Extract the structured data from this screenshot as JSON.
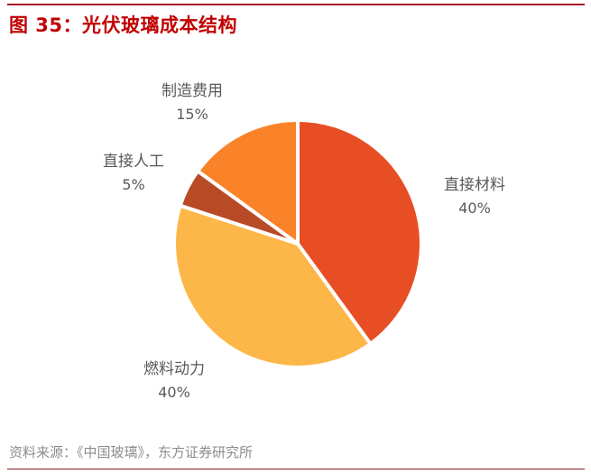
{
  "header": {
    "title": "图 35：光伏玻璃成本结构"
  },
  "footer": {
    "source": "资料来源：《中国玻璃》，东方证券研究所"
  },
  "chart_data": {
    "type": "pie",
    "title": "光伏玻璃成本结构",
    "categories": [
      "直接材料",
      "燃料动力",
      "直接人工",
      "制造费用"
    ],
    "values": [
      40,
      40,
      5,
      15
    ],
    "labels": [
      "40%",
      "40%",
      "5%",
      "15%"
    ],
    "colors": [
      "#e84e23",
      "#fdb748",
      "#b84a26",
      "#fa8228"
    ],
    "start_angle_deg": 0,
    "direction": "clockwise",
    "legend": "none (data labels outside slices)"
  },
  "slices": [
    {
      "name": "直接材料",
      "pct": "40%"
    },
    {
      "name": "燃料动力",
      "pct": "40%"
    },
    {
      "name": "直接人工",
      "pct": "5%"
    },
    {
      "name": "制造费用",
      "pct": "15%"
    }
  ]
}
